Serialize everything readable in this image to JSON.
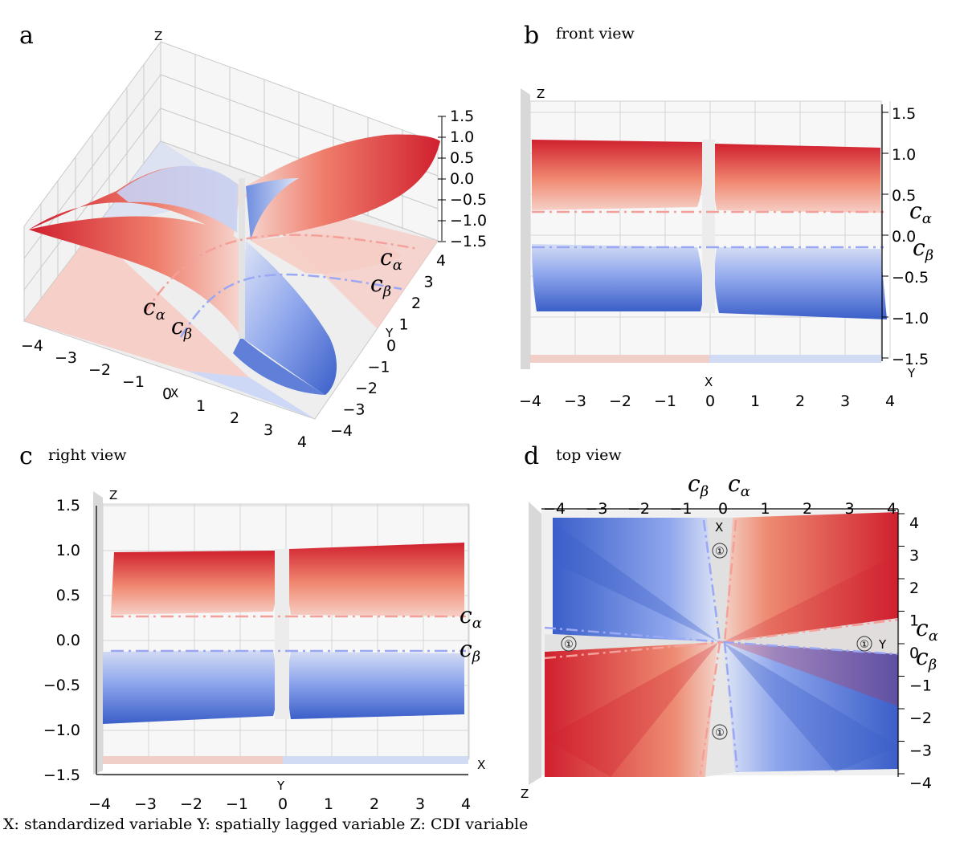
{
  "caption": "X: standardized variable  Y: spatially lagged variable  Z: CDI variable",
  "chart_data": [
    {
      "type": "surface3d",
      "panel": "a",
      "view_title": "",
      "axis_names": {
        "x": "X",
        "y": "Y",
        "z": "Z"
      },
      "xticks": [
        "−4",
        "−3",
        "−2",
        "−1",
        "0",
        "1",
        "2",
        "3",
        "4"
      ],
      "yticks": [
        "−4",
        "−3",
        "−2",
        "−1",
        "0",
        "1",
        "2",
        "3",
        "4"
      ],
      "zticks": [
        "1.5",
        "1.0",
        "0.5",
        "0.0",
        "−0.5",
        "−1.0",
        "−1.5"
      ],
      "xlim": [
        -4,
        4
      ],
      "ylim": [
        -4,
        4
      ],
      "zlim": [
        -1.5,
        1.5
      ],
      "threshold_lines": [
        {
          "label": "c",
          "sub": "α",
          "color": "#f4a09a"
        },
        {
          "label": "c",
          "sub": "β",
          "color": "#9aa8f4"
        }
      ]
    },
    {
      "type": "surface3d",
      "panel": "b",
      "view_title": "front view",
      "axis_names": {
        "x": "X",
        "y": "Y",
        "z": "Z"
      },
      "xticks": [
        "−4",
        "−3",
        "−2",
        "−1",
        "0",
        "1",
        "2",
        "3",
        "4"
      ],
      "zticks": [
        "1.5",
        "1.0",
        "0.5",
        "0.0",
        "−0.5",
        "−1.0",
        "−1.5"
      ],
      "xlim": [
        -4,
        4
      ],
      "zlim": [
        -1.5,
        1.5
      ],
      "threshold_lines": [
        {
          "label": "c",
          "sub": "α",
          "z": 0.17,
          "color": "#f4a09a"
        },
        {
          "label": "c",
          "sub": "β",
          "z": -0.17,
          "color": "#9aa8f4"
        }
      ]
    },
    {
      "type": "surface3d",
      "panel": "c",
      "view_title": "right view",
      "axis_names": {
        "x": "X",
        "y": "Y",
        "z": "Z"
      },
      "yticks": [
        "−4",
        "−3",
        "−2",
        "−1",
        "0",
        "1",
        "2",
        "3",
        "4"
      ],
      "zticks": [
        "1.5",
        "1.0",
        "0.5",
        "0.0",
        "−0.5",
        "−1.0",
        "−1.5"
      ],
      "ylim": [
        -4,
        4
      ],
      "zlim": [
        -1.5,
        1.5
      ],
      "threshold_lines": [
        {
          "label": "c",
          "sub": "α",
          "z": 0.15,
          "color": "#f4a09a"
        },
        {
          "label": "c",
          "sub": "β",
          "z": -0.15,
          "color": "#9aa8f4"
        }
      ]
    },
    {
      "type": "heatmap",
      "panel": "d",
      "view_title": "top view",
      "axis_names": {
        "x": "X",
        "y": "Y",
        "z": "Z"
      },
      "xticks": [
        "−4",
        "−3",
        "−2",
        "−1",
        "0",
        "1",
        "2",
        "3",
        "4"
      ],
      "yticks": [
        "4",
        "3",
        "2",
        "1",
        "0",
        "−1",
        "−2",
        "−3",
        "−4"
      ],
      "xlim": [
        -4,
        4
      ],
      "ylim": [
        -4,
        4
      ],
      "region_marker": "①",
      "threshold_lines": [
        {
          "label": "c",
          "sub": "β",
          "color": "#9aa8f4"
        },
        {
          "label": "c",
          "sub": "α",
          "color": "#f4a09a"
        },
        {
          "label": "c",
          "sub": "α",
          "color": "#f4a09a"
        },
        {
          "label": "c",
          "sub": "β",
          "color": "#9aa8f4"
        }
      ],
      "colors": {
        "positive": "#d0202f",
        "negative": "#3b5fc9",
        "neutral": "#dddddd"
      }
    }
  ]
}
